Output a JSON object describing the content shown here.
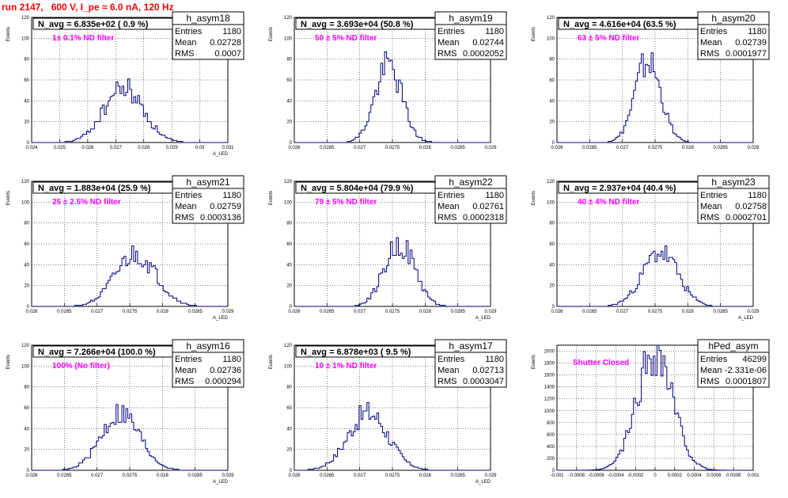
{
  "title": "run 2147,   600 V, I_pe ≈ 6.0 nA, 120 Hz",
  "colors": {
    "title": "#ff0000",
    "hist": "#000080",
    "note": "#ff00ff",
    "grid": "#000000"
  },
  "chart_data": [
    {
      "type": "histogram",
      "name": "h_asym18",
      "navg": "N_avg = 6.835e+02 ( 0.9 %)",
      "note": "1± 0.1% ND filter",
      "stats": [
        [
          "Entries",
          "1180"
        ],
        [
          "Mean",
          "0.02728"
        ],
        [
          "RMS",
          "0.0007"
        ]
      ],
      "xlim": [
        0.024,
        0.031
      ],
      "ylim": [
        0,
        120
      ],
      "xticks": [
        "0.024",
        "0.025",
        "0.026",
        "0.027",
        "0.028",
        "0.029",
        "0.03",
        "0.031"
      ],
      "xtick_values": [
        0.024,
        0.025,
        0.026,
        0.027,
        0.028,
        0.029,
        0.03,
        0.031
      ],
      "yticks": [
        0,
        20,
        40,
        60,
        80,
        100,
        120
      ],
      "ylabel": "Events",
      "xlabel": "A_LED",
      "mean": 0.02728,
      "rms": 0.0007,
      "peak": 52,
      "seed": 18
    },
    {
      "type": "histogram",
      "name": "h_asym19",
      "navg": "N_avg = 3.693e+04 (50.8 %)",
      "note": "50 ± 5% ND filter",
      "stats": [
        [
          "Entries",
          "1180"
        ],
        [
          "Mean",
          "0.02744"
        ],
        [
          "RMS",
          "0.0002052"
        ]
      ],
      "xlim": [
        0.026,
        0.029
      ],
      "ylim": [
        0,
        120
      ],
      "xticks": [
        "0.026",
        "0.0265",
        "0.027",
        "0.0275",
        "0.028",
        "0.0285",
        "0.029"
      ],
      "xtick_values": [
        0.026,
        0.0265,
        0.027,
        0.0275,
        0.028,
        0.0285,
        0.029
      ],
      "yticks": [
        0,
        20,
        40,
        60,
        80,
        100,
        120
      ],
      "ylabel": "Events",
      "xlabel": "",
      "mean": 0.02744,
      "rms": 0.0002052,
      "peak": 74,
      "seed": 19
    },
    {
      "type": "histogram",
      "name": "h_asym20",
      "navg": "N_avg = 4.616e+04 (63.5 %)",
      "note": "63 ± 5% ND filter",
      "stats": [
        [
          "Entries",
          "1180"
        ],
        [
          "Mean",
          "0.02739"
        ],
        [
          "RMS",
          "0.0001977"
        ]
      ],
      "xlim": [
        0.026,
        0.029
      ],
      "ylim": [
        0,
        120
      ],
      "xticks": [
        "0.026",
        "0.0265",
        "0.027",
        "0.0275",
        "0.028",
        "0.0285",
        "0.029"
      ],
      "xtick_values": [
        0.026,
        0.0265,
        0.027,
        0.0275,
        0.028,
        0.0285,
        0.029
      ],
      "yticks": [
        0,
        20,
        40,
        60,
        80,
        100,
        120
      ],
      "ylabel": "Events",
      "xlabel": "",
      "mean": 0.02739,
      "rms": 0.0001977,
      "peak": 78,
      "seed": 20
    },
    {
      "type": "histogram",
      "name": "h_asym21",
      "navg": "N_avg = 1.883e+04 (25.9 %)",
      "note": "25 ± 2.5% ND filter",
      "stats": [
        [
          "Entries",
          "1180"
        ],
        [
          "Mean",
          "0.02759"
        ],
        [
          "RMS",
          "0.0003136"
        ]
      ],
      "xlim": [
        0.026,
        0.029
      ],
      "ylim": [
        0,
        120
      ],
      "xticks": [
        "0.026",
        "0.0265",
        "0.027",
        "0.0275",
        "0.028",
        "0.0285",
        "0.029"
      ],
      "xtick_values": [
        0.026,
        0.0265,
        0.027,
        0.0275,
        0.028,
        0.0285,
        0.029
      ],
      "yticks": [
        0,
        20,
        40,
        60,
        80,
        100,
        120
      ],
      "ylabel": "Events",
      "xlabel": "A_LED",
      "mean": 0.02759,
      "rms": 0.0003136,
      "peak": 50,
      "seed": 21
    },
    {
      "type": "histogram",
      "name": "h_asym22",
      "navg": "N_avg = 5.804e+04 (79.9 %)",
      "note": "79 ± 5% ND filter",
      "stats": [
        [
          "Entries",
          "1180"
        ],
        [
          "Mean",
          "0.02761"
        ],
        [
          "RMS",
          "0.0002318"
        ]
      ],
      "xlim": [
        0.026,
        0.029
      ],
      "ylim": [
        0,
        120
      ],
      "xticks": [
        "0.026",
        "0.0265",
        "0.027",
        "0.0275",
        "0.028",
        "0.0285",
        "0.029"
      ],
      "xtick_values": [
        0.026,
        0.0265,
        0.027,
        0.0275,
        0.028,
        0.0285,
        0.029
      ],
      "yticks": [
        0,
        20,
        40,
        60,
        80,
        100,
        120
      ],
      "ylabel": "Events",
      "xlabel": "A_LED",
      "mean": 0.02761,
      "rms": 0.0002318,
      "peak": 60,
      "seed": 22
    },
    {
      "type": "histogram",
      "name": "h_asym23",
      "navg": "N_avg = 2.937e+04 (40.4 %)",
      "note": "40 ± 4% ND filter",
      "stats": [
        [
          "Entries",
          "1180"
        ],
        [
          "Mean",
          "0.02758"
        ],
        [
          "RMS",
          "0.0002701"
        ]
      ],
      "xlim": [
        0.026,
        0.029
      ],
      "ylim": [
        0,
        120
      ],
      "xticks": [
        "0.026",
        "0.0265",
        "0.027",
        "0.0275",
        "0.028",
        "0.0285",
        "0.029"
      ],
      "xtick_values": [
        0.026,
        0.0265,
        0.027,
        0.0275,
        0.028,
        0.0285,
        0.029
      ],
      "yticks": [
        0,
        20,
        40,
        60,
        80,
        100,
        120
      ],
      "ylabel": "Events",
      "xlabel": "A_LED",
      "mean": 0.02758,
      "rms": 0.0002701,
      "peak": 52,
      "seed": 23
    },
    {
      "type": "histogram",
      "name": "h_asym16",
      "navg": "N_avg = 7.266e+04 (100.0 %)",
      "note": "100% (No filter)",
      "stats": [
        [
          "Entries",
          "1180"
        ],
        [
          "Mean",
          "0.02736"
        ],
        [
          "RMS",
          "0.000294"
        ]
      ],
      "xlim": [
        0.026,
        0.029
      ],
      "ylim": [
        0,
        120
      ],
      "xticks": [
        "0.026",
        "0.0265",
        "0.027",
        "0.0275",
        "0.028",
        "0.0285",
        "0.029"
      ],
      "xtick_values": [
        0.026,
        0.0265,
        0.027,
        0.0275,
        0.028,
        0.0285,
        0.029
      ],
      "yticks": [
        0,
        20,
        40,
        60,
        80,
        100,
        120
      ],
      "ylabel": "Events",
      "xlabel": "A_LED",
      "mean": 0.02736,
      "rms": 0.000294,
      "peak": 55,
      "seed": 16
    },
    {
      "type": "histogram",
      "name": "h_asym17",
      "navg": "N_avg = 6.878e+03 ( 9.5 %)",
      "note": "10 ± 1% ND filter",
      "stats": [
        [
          "Entries",
          "1180"
        ],
        [
          "Mean",
          "0.02713"
        ],
        [
          "RMS",
          "0.0003047"
        ]
      ],
      "xlim": [
        0.026,
        0.029
      ],
      "ylim": [
        0,
        120
      ],
      "xticks": [
        "0.026",
        "0.0265",
        "0.027",
        "0.0275",
        "0.028",
        "0.0285",
        "0.029"
      ],
      "xtick_values": [
        0.026,
        0.0265,
        0.027,
        0.0275,
        0.028,
        0.0285,
        0.029
      ],
      "yticks": [
        0,
        20,
        40,
        60,
        80,
        100,
        120
      ],
      "ylabel": "Events",
      "xlabel": "A_LED",
      "mean": 0.02713,
      "rms": 0.0003047,
      "peak": 55,
      "seed": 17
    },
    {
      "type": "histogram",
      "name": "hPed_asym",
      "navg": "",
      "note": "Shutter Closed",
      "stats": [
        [
          "Entries",
          "46299"
        ],
        [
          "Mean",
          "-2.331e-06"
        ],
        [
          "RMS",
          "0.0001807"
        ]
      ],
      "xlim": [
        -0.001,
        0.001
      ],
      "ylim": [
        0,
        2100
      ],
      "xticks": [
        "-0.001",
        "-0.0008",
        "-0.0006",
        "-0.0004",
        "-0.0002",
        "0",
        "0.0002",
        "0.0004",
        "0.0006",
        "0.0008",
        "0.001"
      ],
      "xtick_values": [
        -0.001,
        -0.0008,
        -0.0006,
        -0.0004,
        -0.0002,
        0,
        0.0002,
        0.0004,
        0.0006,
        0.0008,
        0.001
      ],
      "yticks": [
        0,
        200,
        400,
        600,
        800,
        1000,
        1200,
        1400,
        1600,
        1800,
        2000
      ],
      "ylabel": "Events",
      "xlabel": "",
      "mean": -2.331e-06,
      "rms": 0.0001807,
      "peak": 2000,
      "seed": 99
    }
  ]
}
